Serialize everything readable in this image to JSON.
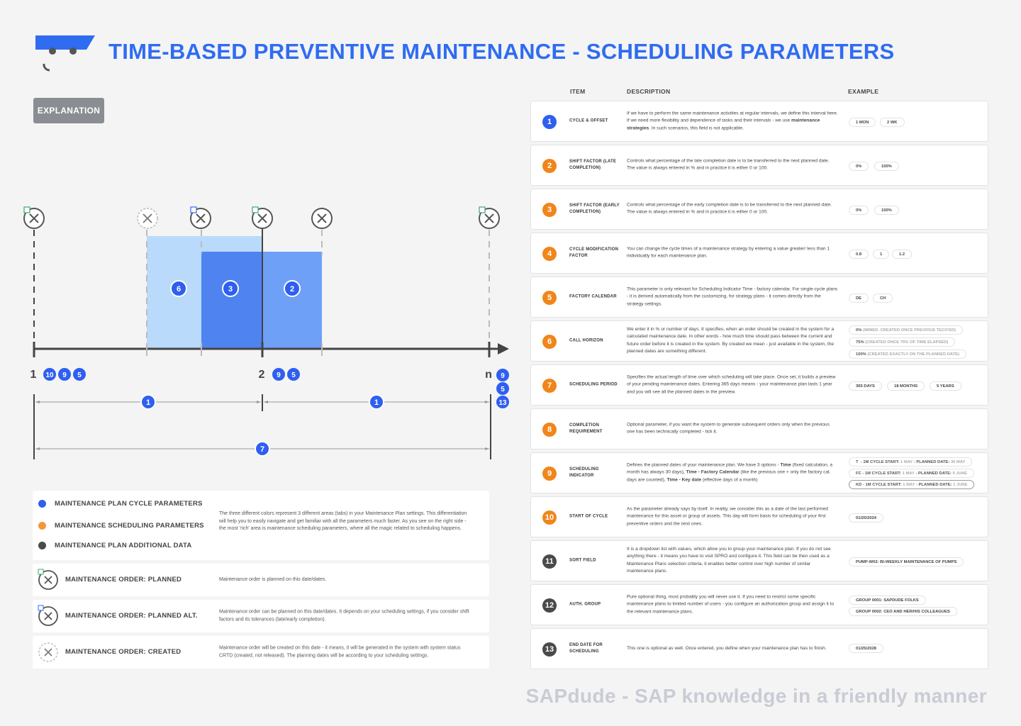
{
  "header": {
    "title": "TIME-BASED PREVENTIVE MAINTENANCE - SCHEDULING PARAMETERS",
    "explanation_label": "EXPLANATION"
  },
  "colors": {
    "blue": "#2f5ff0",
    "orange": "#f0861b",
    "dark": "#4a4a4a",
    "light_blue": "#b9dafb",
    "mid_blue": "#5b8ff5"
  },
  "diagram": {
    "axis_labels": {
      "start": "1",
      "mid": "2",
      "end": "n"
    },
    "start_badges": [
      "10",
      "9",
      "5"
    ],
    "mid_badges": [
      "9",
      "5"
    ],
    "end_badges": [
      "9",
      "5",
      "13"
    ],
    "block_labels": {
      "call_horizon": "6",
      "early": "3",
      "late": "2"
    },
    "span_labels": {
      "cycle_1": "1",
      "cycle_2": "1",
      "period": "7"
    }
  },
  "legend": {
    "categories": [
      {
        "label": "MAINTENANCE PLAN CYCLE PARAMETERS",
        "color": "#2f5ff0"
      },
      {
        "label": "MAINTENANCE SCHEDULING PARAMETERS",
        "color": "#f5953a"
      },
      {
        "label": "MAINTENANCE PLAN ADDITIONAL DATA",
        "color": "#4a4a4a"
      }
    ],
    "categories_desc": "The three different colors represent 3 different areas (tabs) in your Maintenance Plan settings. This differentiation will help you to easily navigate and get familiar with all the parameters much faster. As you see on the right side - the most 'rich' area is maintenance scheduling parameters, where all the magic related to scheduling happens.",
    "orders": [
      {
        "label": "MAINTENANCE ORDER: PLANNED",
        "desc": "Maintenance order is planned on this date/dates.",
        "icon": "planned-order-icon"
      },
      {
        "label": "MAINTENANCE ORDER: PLANNED ALT.",
        "desc": "Maintenance order can be planned on this date/dates. It depends on your scheduling settings, if you consider shift factors and its tolerances (late/early completion).",
        "icon": "planned-alt-order-icon"
      },
      {
        "label": "MAINTENANCE ORDER: CREATED",
        "desc": "Maintenance order will be created on this date - it means, it will be generated in the system with system status CRTD (created, not released). The planning dates will be according to your scheduling settings.",
        "icon": "created-order-icon"
      }
    ]
  },
  "table": {
    "headers": {
      "item": "ITEM",
      "description": "DESCRIPTION",
      "example": "EXAMPLE"
    },
    "rows": [
      {
        "n": "1",
        "color": "blue",
        "item": "CYCLE & OFFSET"
      },
      {
        "n": "2",
        "color": "orange",
        "item": "SHIFT FACTOR (LATE COMPLETION)",
        "desc": "Controls what percentage of the late completion date is to be transferred to the next planned date. The value is always entered in % and in practice it is either 0 or 100.",
        "examples": [
          "0%",
          "100%"
        ]
      },
      {
        "n": "3",
        "color": "orange",
        "item": "SHIFT FACTOR (EARLY COMPLETION)",
        "desc": "Controls what percentage of the early completion date is to be transferred to the next planned date. The value is always entered in % and in practice it is either 0 or 100.",
        "examples": [
          "0%",
          "100%"
        ]
      },
      {
        "n": "4",
        "color": "orange",
        "item": "CYCLE MODIFICATION FACTOR",
        "desc": "You can change the cycle times of a maintenance strategy by entering a value greater/ less than 1 individually for each maintenance plan.",
        "examples": [
          "0.8",
          "1",
          "1.2"
        ]
      },
      {
        "n": "5",
        "color": "orange",
        "item": "FACTORY CALENDAR",
        "desc": "This parameter is only relevant for Scheduling Indicator Time - factory calendar. For single-cycle plans - it is derived automatically from the customizing, for strategy plans - it comes directly from the strategy settings.",
        "examples": [
          "DE",
          "CH"
        ]
      },
      {
        "n": "6",
        "color": "orange",
        "item": "CALL HORIZON",
        "desc": "We enter it in % or number of days. It specifies, when an order should be created in the system for a calculated maintenance date. In other words - how much time should pass between the current and future order before it is created in the system. By created we mean - just available in the system, the planned dates are something different."
      },
      {
        "n": "7",
        "color": "orange",
        "item": "SCHEDULING PERIOD",
        "desc": "Specifies the actual length of time over which scheduling will take place. Once set, it builds a preview of your pending maintenance dates. Entering 365 days means - your maintenance plan lasts 1 year and you will see all the planned dates in the preview.",
        "examples": [
          "365 DAYS",
          "18 MONTHS",
          "5 YEARS"
        ]
      },
      {
        "n": "8",
        "color": "orange",
        "item": "COMPLETION REQUIREMENT",
        "desc": "Optional parameter, if you want the system to generate subsequent orders only when the previous one has been technically completed - tick it."
      },
      {
        "n": "9",
        "color": "orange",
        "item": "SCHEDULING INDICATOR"
      },
      {
        "n": "10",
        "color": "orange",
        "item": "START OF CYCLE",
        "desc": "As the parameter already says by itself. In reality, we consider this as a date of the last performed maintenance for this asset or group of assets. This day will form basis for scheduling of your first preventive orders and the next ones.",
        "examples": [
          "01/25/2024"
        ]
      },
      {
        "n": "11",
        "color": "dark",
        "item": "SORT FIELD",
        "desc": "It is a dropdown list with values, which allow you to group your maintenance plan. If you do not see anything there - it means you have to visit SPRO and configure it. This field can be then used as a Maintenance Plans selection criteria, it enables better control over high number of similar maintenance plans.",
        "examples": [
          "PUMP-W02: BI-WEEKLY MAINTENANCE OF PUMPS"
        ]
      },
      {
        "n": "12",
        "color": "dark",
        "item": "AUTH. GROUP",
        "desc": "Pure optional thing, most probably you will never use it. If you need to restrict some specific maintenance plans to limited number of users - you configure an authorization group and assign it to the relevant maintenance plans.",
        "examples": [
          "GROUP 0001: SAPDUDE FOLKS",
          "GROUP 0002: CEO AND HER/HIS COLLEAGUES"
        ]
      },
      {
        "n": "13",
        "color": "dark",
        "item": "END DATE FOR SCHEDULING",
        "desc": "This one is optional as well. Once entered, you define when your maintenance plan has to finish.",
        "examples": [
          "01/25/2028"
        ]
      }
    ],
    "row1": {
      "desc_a": "If we have to perform the same maintenance activities at regular intervals, we define this interval here. If we need more flexibility and dependence of tasks and their intervals - we use",
      "desc_bold": "maintenance strategies",
      "desc_b": ". In such scenarios, this field is not applicable.",
      "examples": [
        "1 MON",
        "2 WK"
      ]
    },
    "row6_examples": [
      {
        "main": "0%",
        "note": "(IMMED. CREATED ONCE PREVIOUS TECO'ED)"
      },
      {
        "main": "75%",
        "note": "(CREATED ONCE 75% OF TIME ELAPSED)"
      },
      {
        "main": "100%",
        "note": "(CREATED EXACTLY ON THE PLANNED DATE)"
      }
    ],
    "row9": {
      "d1": "Defines the planned dates of your maintenance plan. We have 3 options -",
      "b1": "Time",
      "d2": "(fixed calculation, a month has always 30 days),",
      "b2": "Time - Factory Calendar",
      "d3": "(like the previous one + only the factory cal. days are counted),",
      "b3": "Time - Key date",
      "d4": "(effective days of a month)",
      "examples": [
        {
          "code": "T",
          "label": "- 1M CYCLE START:",
          "start": "1 MAY",
          "sep": "- PLANNED DATE:",
          "planned": "30 MAY"
        },
        {
          "code": "FC",
          "label": "- 1M CYCLE START:",
          "start": "1 MAY",
          "sep": "- PLANNED DATE:",
          "planned": "9 JUNE"
        },
        {
          "code": "KD",
          "label": "- 1M CYCLE START:",
          "start": "1 MAY",
          "sep": "- PLANNED DATE:",
          "planned": "1 JUNE"
        }
      ]
    }
  },
  "footer": "SAPdude - SAP knowledge in a friendly manner"
}
